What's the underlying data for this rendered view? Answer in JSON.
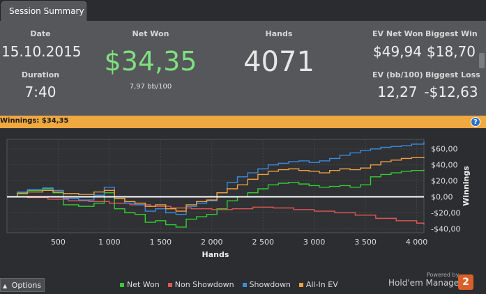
{
  "tab": {
    "label": "Session Summary"
  },
  "summary": {
    "date_label": "Date",
    "date_value": "15.10.2015",
    "duration_label": "Duration",
    "duration_value": "7:40",
    "net_won_label": "Net Won",
    "net_won_value": "$34,35",
    "net_won_sub": "7,97 bb/100",
    "hands_label": "Hands",
    "hands_value": "4071",
    "ev_net_won_label": "EV Net Won",
    "ev_net_won_value": "$49,94",
    "biggest_win_label": "Biggest Win",
    "biggest_win_value": "$18,70",
    "ev_bb_label": "EV (bb/100)",
    "ev_bb_value": "12,27",
    "biggest_loss_label": "Biggest Loss",
    "biggest_loss_value": "-$12,63",
    "accent_green": "#7ee07e"
  },
  "banner": {
    "text": "Winnings:  $34,35",
    "help_label": "?"
  },
  "chart_data": {
    "type": "line",
    "xlabel": "Hands",
    "ylabel": "Winnings",
    "xlim": [
      0,
      4071
    ],
    "ylim": [
      -45,
      72
    ],
    "x_ticks": [
      500,
      1000,
      1500,
      2000,
      2500,
      3000,
      3500,
      4000
    ],
    "x_tick_labels": [
      "500",
      "1 000",
      "1 500",
      "2 000",
      "2 500",
      "3 000",
      "3 500",
      "4 000"
    ],
    "y_ticks": [
      60,
      40,
      20,
      0,
      -20,
      -40
    ],
    "y_tick_labels": [
      "$60,00",
      "$40,00",
      "$20,00",
      "$0,00",
      "-$20,00",
      "-$40,00"
    ],
    "grid": true,
    "legend_position": "bottom",
    "series": [
      {
        "name": "Net Won",
        "color": "#33cc33",
        "x": [
          0,
          100,
          200,
          350,
          450,
          550,
          700,
          850,
          950,
          1050,
          1150,
          1250,
          1350,
          1450,
          1550,
          1650,
          1750,
          1850,
          1950,
          2050,
          2150,
          2250,
          2350,
          2450,
          2550,
          2650,
          2750,
          2850,
          2950,
          3050,
          3150,
          3250,
          3350,
          3450,
          3550,
          3650,
          3750,
          3850,
          3950,
          4071
        ],
        "y": [
          0,
          5,
          8,
          10,
          5,
          -10,
          -12,
          -8,
          5,
          -15,
          -20,
          -22,
          -32,
          -30,
          -35,
          -38,
          -28,
          -25,
          -22,
          -15,
          -5,
          0,
          5,
          10,
          15,
          17,
          18,
          16,
          14,
          12,
          13,
          14,
          12,
          15,
          25,
          28,
          30,
          32,
          33,
          34
        ]
      },
      {
        "name": "Non Showdown",
        "color": "#e05555",
        "x": [
          0,
          200,
          400,
          600,
          800,
          1000,
          1200,
          1400,
          1600,
          1800,
          2000,
          2200,
          2400,
          2600,
          2800,
          3000,
          3200,
          3400,
          3600,
          3800,
          4000,
          4071
        ],
        "y": [
          0,
          -1,
          -3,
          -5,
          -6,
          -8,
          -10,
          -12,
          -14,
          -15,
          -16,
          -15,
          -13,
          -14,
          -16,
          -18,
          -20,
          -23,
          -27,
          -30,
          -33,
          -35
        ]
      },
      {
        "name": "Showdown",
        "color": "#3b8be0",
        "x": [
          0,
          100,
          200,
          350,
          450,
          550,
          700,
          850,
          950,
          1050,
          1150,
          1250,
          1350,
          1450,
          1550,
          1650,
          1750,
          1850,
          1950,
          2050,
          2150,
          2250,
          2350,
          2450,
          2550,
          2650,
          2750,
          2850,
          2950,
          3050,
          3150,
          3250,
          3350,
          3450,
          3550,
          3650,
          3750,
          3850,
          3950,
          4071
        ],
        "y": [
          0,
          6,
          9,
          11,
          8,
          -2,
          -4,
          2,
          12,
          -2,
          -8,
          -10,
          -18,
          -15,
          -20,
          -22,
          -12,
          -8,
          -5,
          5,
          18,
          25,
          30,
          35,
          40,
          42,
          44,
          45,
          43,
          45,
          48,
          52,
          55,
          58,
          60,
          62,
          63,
          64,
          66,
          69
        ]
      },
      {
        "name": "All-In EV",
        "color": "#f0a040",
        "x": [
          0,
          100,
          200,
          350,
          450,
          550,
          700,
          850,
          950,
          1050,
          1150,
          1250,
          1350,
          1450,
          1550,
          1650,
          1750,
          1850,
          1950,
          2050,
          2150,
          2250,
          2350,
          2450,
          2550,
          2650,
          2750,
          2850,
          2950,
          3050,
          3150,
          3250,
          3350,
          3450,
          3550,
          3650,
          3750,
          3850,
          3950,
          4071
        ],
        "y": [
          0,
          4,
          6,
          8,
          6,
          4,
          3,
          6,
          8,
          -2,
          -6,
          -8,
          -12,
          -10,
          -15,
          -18,
          -10,
          -6,
          -4,
          5,
          10,
          15,
          22,
          28,
          32,
          34,
          35,
          33,
          32,
          30,
          33,
          35,
          34,
          36,
          40,
          44,
          46,
          48,
          49,
          50
        ]
      }
    ]
  },
  "footer": {
    "options_label": "Options",
    "powered_by": "Powered by",
    "brand": "Hold'em Manager",
    "brand_badge": "2"
  }
}
